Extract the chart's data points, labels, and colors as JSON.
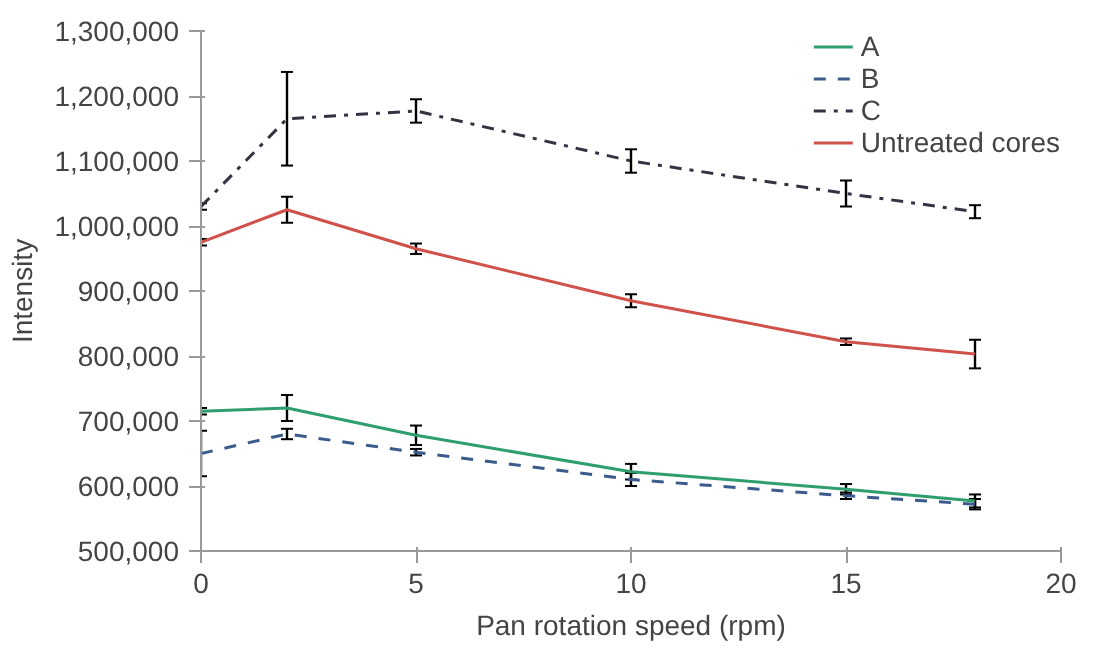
{
  "chart_data": {
    "type": "line",
    "xlabel": "Pan rotation speed (rpm)",
    "ylabel": "Intensity",
    "x": [
      0,
      2,
      5,
      10,
      15,
      18
    ],
    "series": [
      {
        "name": "A",
        "color": "#2e9e6e",
        "line_style": "solid",
        "values": [
          715000,
          720000,
          678000,
          622000,
          595000,
          577000
        ],
        "errors": [
          5000,
          20000,
          15000,
          12000,
          8000,
          10000
        ]
      },
      {
        "name": "B",
        "color": "#3b5b8c",
        "line_style": "dashed",
        "values": [
          650000,
          680000,
          652000,
          610000,
          585000,
          572000
        ],
        "errors": [
          35000,
          8000,
          5000,
          10000,
          5000,
          8000
        ]
      },
      {
        "name": "C",
        "color": "#333344",
        "line_style": "dashdot",
        "values": [
          1030000,
          1165000,
          1177000,
          1100000,
          1050000,
          1022000
        ],
        "errors": [
          5000,
          72000,
          18000,
          18000,
          20000,
          10000
        ]
      },
      {
        "name": "Untreated cores",
        "color": "#d0504a",
        "line_style": "solid",
        "values": [
          975000,
          1025000,
          965000,
          885000,
          822000,
          803000
        ],
        "errors": [
          5000,
          20000,
          8000,
          10000,
          5000,
          22000
        ]
      }
    ],
    "xlim": [
      0,
      20
    ],
    "xticks": [
      0,
      5,
      10,
      15,
      20
    ],
    "ylim": [
      500000,
      1300000
    ],
    "yticks": [
      {
        "value": 500000,
        "label": "500,000"
      },
      {
        "value": 600000,
        "label": "600,000"
      },
      {
        "value": 700000,
        "label": "700,000"
      },
      {
        "value": 800000,
        "label": "800,000"
      },
      {
        "value": 900000,
        "label": "900,000"
      },
      {
        "value": 1000000,
        "label": "1,000,000"
      },
      {
        "value": 1100000,
        "label": "1,100,000"
      },
      {
        "value": 1200000,
        "label": "1,200,000"
      },
      {
        "value": 1300000,
        "label": "1,300,000"
      }
    ],
    "grid": false,
    "legend": "top right",
    "marker": "none"
  }
}
